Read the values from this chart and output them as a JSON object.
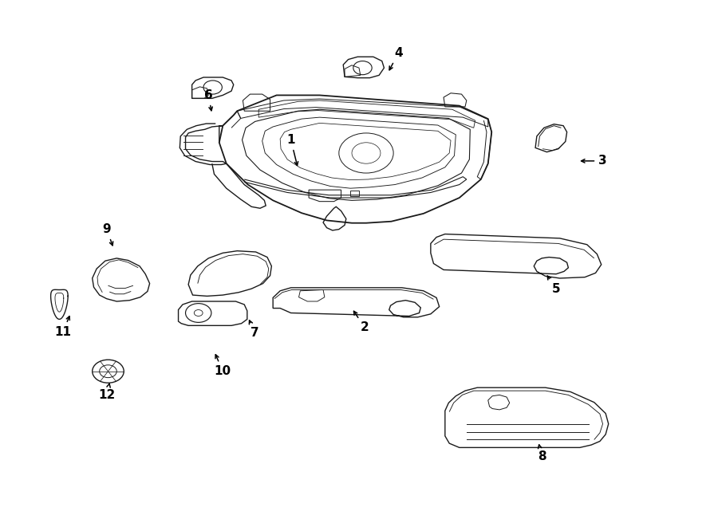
{
  "background_color": "#ffffff",
  "line_color": "#1a1a1a",
  "lw": 1.0,
  "parts_labels": {
    "1": [
      0.405,
      0.735,
      0.415,
      0.68
    ],
    "2": [
      0.508,
      0.378,
      0.49,
      0.415
    ],
    "3": [
      0.84,
      0.695,
      0.805,
      0.695
    ],
    "4": [
      0.555,
      0.9,
      0.54,
      0.862
    ],
    "5": [
      0.775,
      0.452,
      0.76,
      0.482
    ],
    "6": [
      0.29,
      0.82,
      0.295,
      0.784
    ],
    "7": [
      0.355,
      0.368,
      0.345,
      0.398
    ],
    "8": [
      0.755,
      0.133,
      0.75,
      0.162
    ],
    "9": [
      0.148,
      0.565,
      0.158,
      0.528
    ],
    "10": [
      0.31,
      0.295,
      0.298,
      0.333
    ],
    "11": [
      0.087,
      0.37,
      0.098,
      0.406
    ],
    "12": [
      0.148,
      0.25,
      0.153,
      0.278
    ]
  }
}
